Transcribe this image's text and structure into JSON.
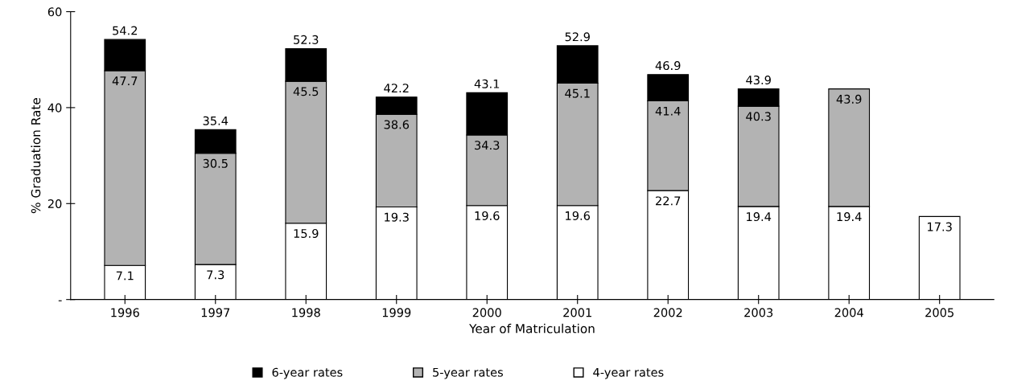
{
  "chart_data": {
    "type": "bar",
    "stacked": true,
    "xlabel": "Year of Matriculation",
    "ylabel": "% Graduation Rate",
    "categories": [
      "1996",
      "1997",
      "1998",
      "1999",
      "2000",
      "2001",
      "2002",
      "2003",
      "2004",
      "2005"
    ],
    "series": [
      {
        "name": "4-year rates",
        "color": "#ffffff",
        "values": [
          7.1,
          7.3,
          15.9,
          19.3,
          19.6,
          19.6,
          22.7,
          19.4,
          19.4,
          17.3
        ]
      },
      {
        "name": "5-year rates",
        "color": "#b3b3b3",
        "values": [
          40.6,
          23.2,
          29.6,
          19.3,
          14.7,
          25.5,
          18.7,
          20.9,
          24.5,
          null
        ]
      },
      {
        "name": "6-year rates",
        "color": "#000000",
        "values": [
          6.5,
          4.9,
          6.8,
          3.6,
          8.8,
          7.8,
          5.5,
          3.6,
          null,
          null
        ]
      }
    ],
    "annotations": [
      {
        "text": "7.1",
        "x": "1996",
        "y": 7.1
      },
      {
        "text": "47.7",
        "x": "1996",
        "y": 47.7
      },
      {
        "text": "54.2",
        "x": "1996",
        "y": 54.2
      },
      {
        "text": "7.3",
        "x": "1997",
        "y": 7.3
      },
      {
        "text": "30.5",
        "x": "1997",
        "y": 30.5
      },
      {
        "text": "35.4",
        "x": "1997",
        "y": 35.4
      },
      {
        "text": "15.9",
        "x": "1998",
        "y": 15.9
      },
      {
        "text": "45.5",
        "x": "1998",
        "y": 45.5
      },
      {
        "text": "52.3",
        "x": "1998",
        "y": 52.3
      },
      {
        "text": "19.3",
        "x": "1999",
        "y": 19.3
      },
      {
        "text": "38.6",
        "x": "1999",
        "y": 38.6
      },
      {
        "text": "42.2",
        "x": "1999",
        "y": 42.2
      },
      {
        "text": "19.6",
        "x": "2000",
        "y": 19.6
      },
      {
        "text": "34.3",
        "x": "2000",
        "y": 34.3
      },
      {
        "text": "43.1",
        "x": "2000",
        "y": 43.1
      },
      {
        "text": "19.6",
        "x": "2001",
        "y": 19.6
      },
      {
        "text": "45.1",
        "x": "2001",
        "y": 45.1
      },
      {
        "text": "52.9",
        "x": "2001",
        "y": 52.9
      },
      {
        "text": "22.7",
        "x": "2002",
        "y": 22.7
      },
      {
        "text": "41.4",
        "x": "2002",
        "y": 41.4
      },
      {
        "text": "46.9",
        "x": "2002",
        "y": 46.9
      },
      {
        "text": "19.4",
        "x": "2003",
        "y": 19.4
      },
      {
        "text": "40.3",
        "x": "2003",
        "y": 40.3
      },
      {
        "text": "43.9",
        "x": "2003",
        "y": 43.9
      },
      {
        "text": "19.4",
        "x": "2004",
        "y": 19.4
      },
      {
        "text": "43.9",
        "x": "2004",
        "y": 43.9
      },
      {
        "text": "17.3",
        "x": "2005",
        "y": 17.3
      }
    ],
    "ylim": [
      0,
      60
    ],
    "yticks": [
      {
        "value": 0,
        "label": "-"
      },
      20,
      40,
      60
    ],
    "grid": false,
    "legend": "bottom"
  }
}
